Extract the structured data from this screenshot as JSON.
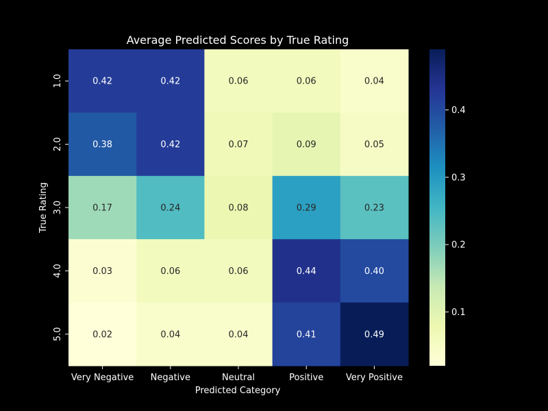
{
  "chart_data": {
    "type": "heatmap",
    "title": "Average Predicted Scores by True Rating",
    "xlabel": "Predicted Category",
    "ylabel": "True Rating",
    "x_categories": [
      "Very Negative",
      "Negative",
      "Neutral",
      "Positive",
      "Very Positive"
    ],
    "y_categories": [
      "1.0",
      "2.0",
      "3.0",
      "4.0",
      "5.0"
    ],
    "values": [
      [
        0.42,
        0.42,
        0.06,
        0.06,
        0.04
      ],
      [
        0.38,
        0.42,
        0.07,
        0.09,
        0.05
      ],
      [
        0.17,
        0.24,
        0.08,
        0.29,
        0.23
      ],
      [
        0.03,
        0.06,
        0.06,
        0.44,
        0.4
      ],
      [
        0.02,
        0.04,
        0.04,
        0.41,
        0.49
      ]
    ],
    "cell_labels": [
      [
        "0.42",
        "0.42",
        "0.06",
        "0.06",
        "0.04"
      ],
      [
        "0.38",
        "0.42",
        "0.07",
        "0.09",
        "0.05"
      ],
      [
        "0.17",
        "0.24",
        "0.08",
        "0.29",
        "0.23"
      ],
      [
        "0.03",
        "0.06",
        "0.06",
        "0.44",
        "0.40"
      ],
      [
        "0.02",
        "0.04",
        "0.04",
        "0.41",
        "0.49"
      ]
    ],
    "colormap": "YlGnBu",
    "colorbar": {
      "range": [
        0.02,
        0.49
      ],
      "ticks": [
        0.1,
        0.2,
        0.3,
        0.4
      ],
      "tick_labels": [
        "0.1",
        "0.2",
        "0.3",
        "0.4"
      ]
    },
    "background": "#000000",
    "text_color": "#ffffff"
  }
}
